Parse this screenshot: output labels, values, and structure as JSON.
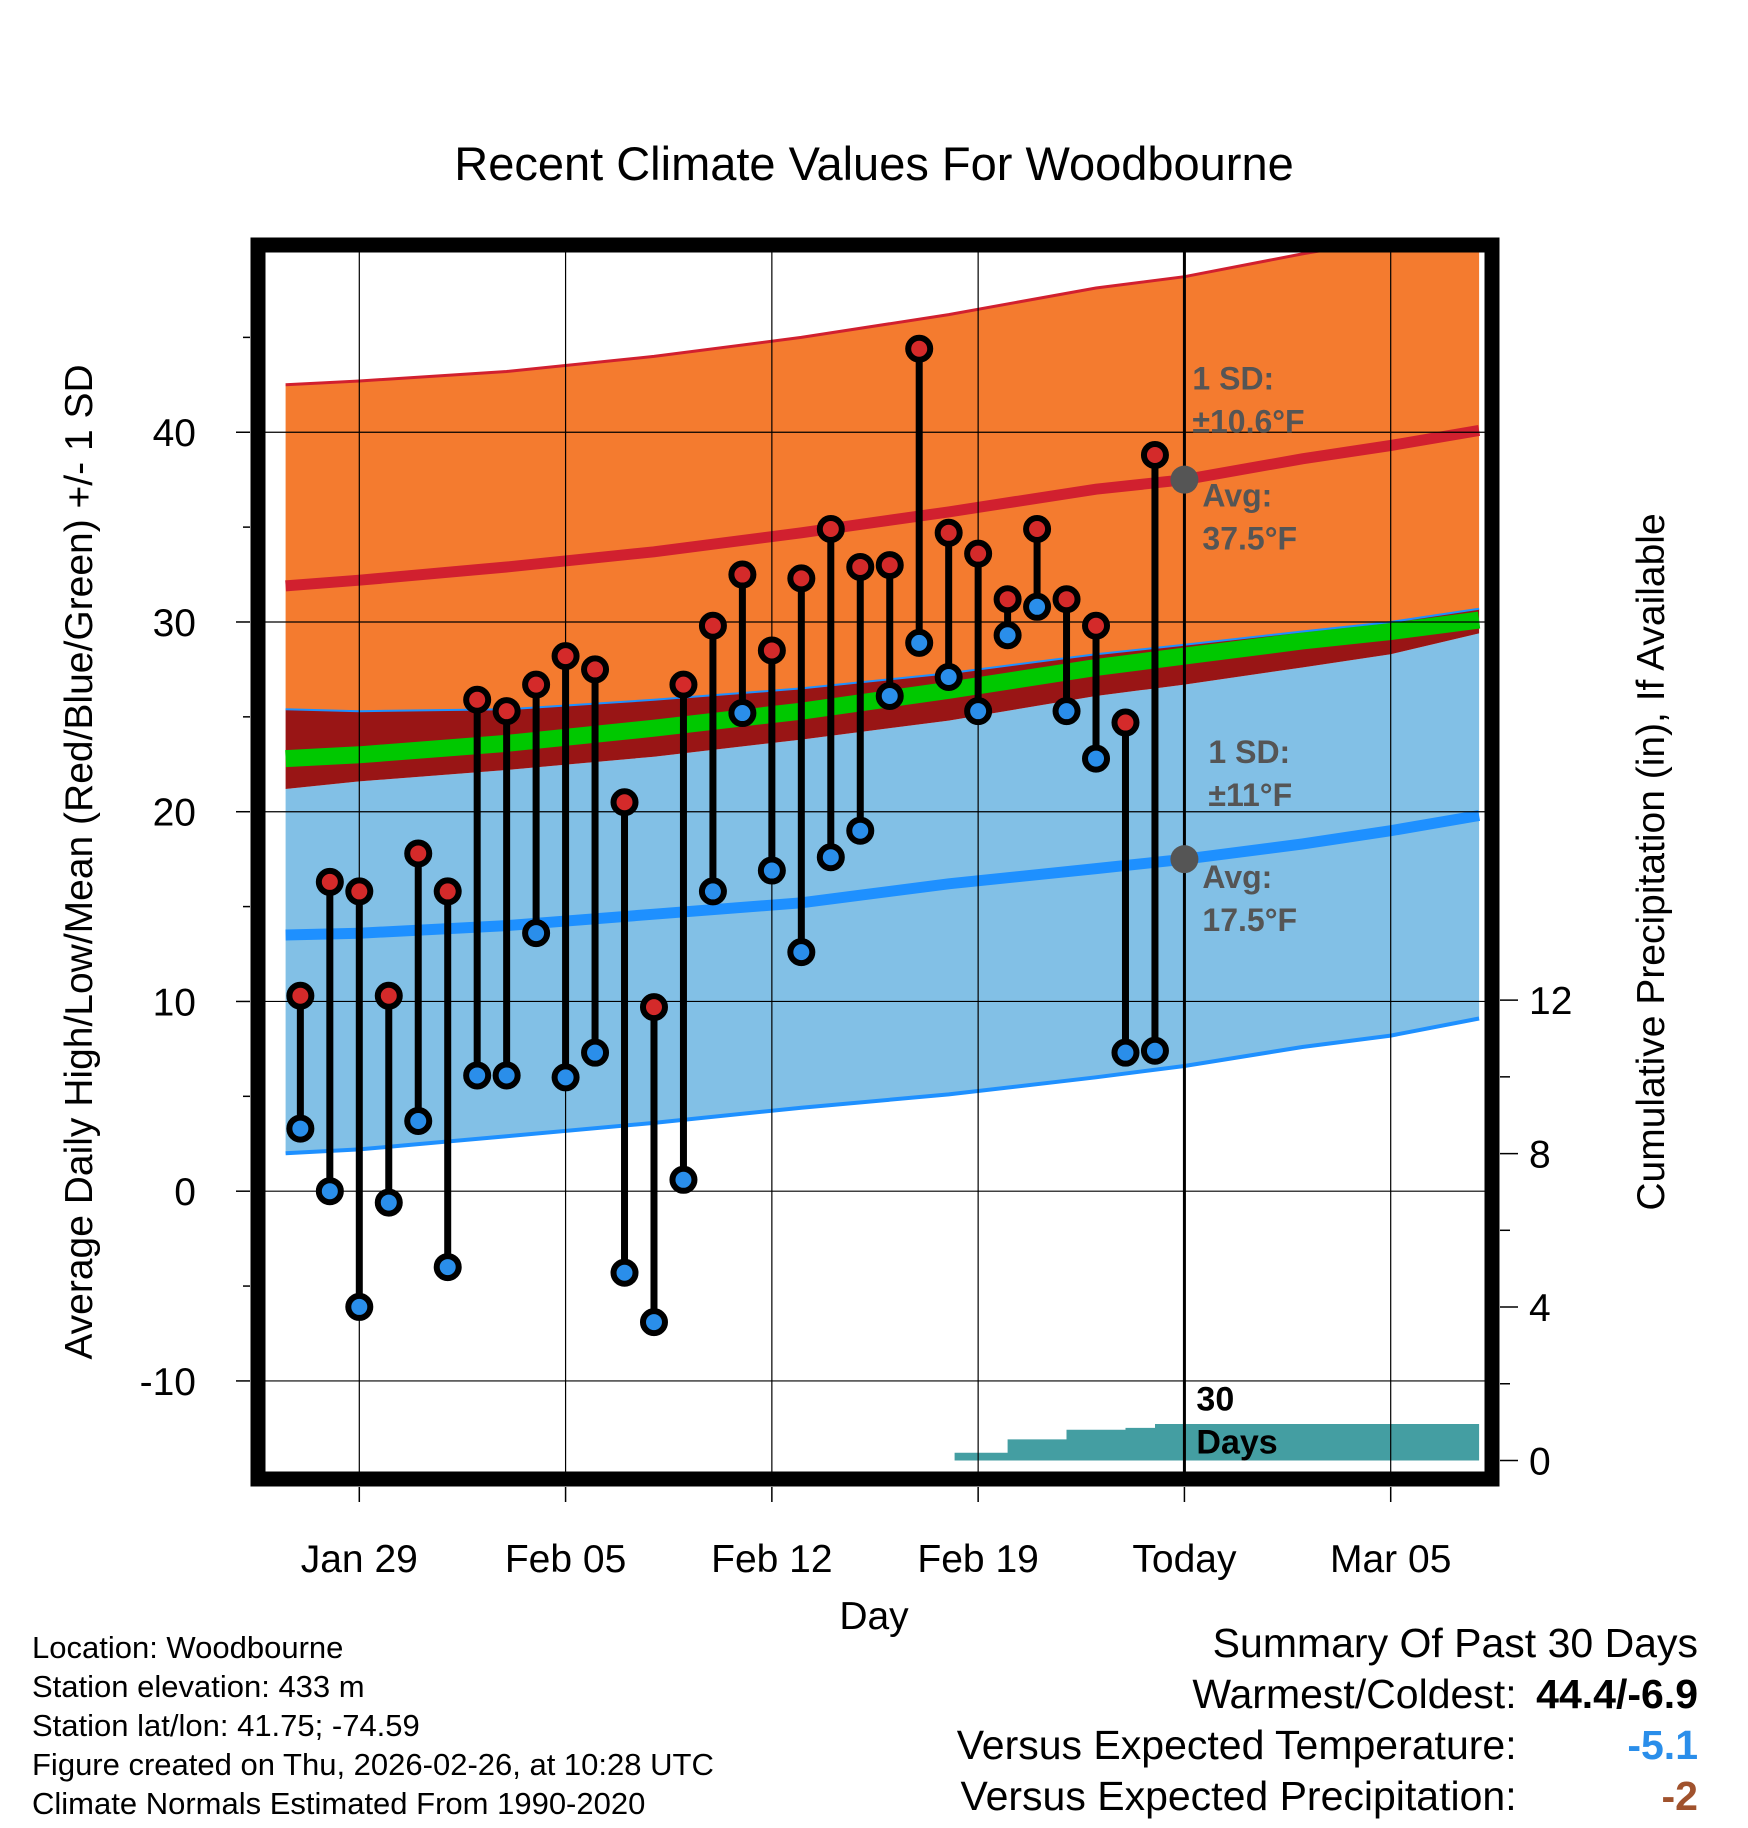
{
  "chart_data": {
    "type": "line",
    "title": "Recent Climate Values For Woodbourne",
    "xlabel": "Day",
    "ylabel": "Average Daily High/Low/Mean (Red/Blue/Green) +/- 1 SD",
    "y2label": "Cumulative Precipitation (in), If Available",
    "ylim": [
      -14.8,
      49.5
    ],
    "y2lim": [
      -0.3,
      31.5
    ],
    "xlim": [
      -3.2,
      38.2
    ],
    "yticks": [
      "-10",
      "0",
      "10",
      "20",
      "30",
      "40"
    ],
    "y2ticks": [
      "0",
      "4",
      "8",
      "12"
    ],
    "x_tick_labels": [
      {
        "day": 0,
        "label": "Jan 29"
      },
      {
        "day": 7,
        "label": "Feb 05"
      },
      {
        "day": 14,
        "label": "Feb 12"
      },
      {
        "day": 21,
        "label": "Feb 19"
      },
      {
        "day": 28,
        "label": "Today"
      },
      {
        "day": 35,
        "label": "Mar 05"
      }
    ],
    "today_day": 28,
    "normals": {
      "days": [
        -2.5,
        0,
        5,
        10,
        15,
        20,
        25,
        28,
        32,
        35,
        38
      ],
      "high_avg": [
        31.9,
        32.2,
        32.9,
        33.7,
        34.7,
        35.8,
        37.0,
        37.5,
        38.6,
        39.3,
        40.1
      ],
      "high_upper": [
        42.5,
        42.7,
        43.2,
        44.0,
        45.0,
        46.2,
        47.6,
        48.2,
        49.4,
        50.2,
        51.0
      ],
      "high_lower": [
        25.4,
        25.3,
        25.4,
        25.9,
        26.5,
        27.3,
        28.3,
        28.8,
        29.5,
        30.0,
        30.7
      ],
      "mean_avg": [
        22.8,
        23.0,
        23.6,
        24.4,
        25.3,
        26.4,
        27.6,
        28.2,
        29.0,
        29.5,
        30.1
      ],
      "low_avg": [
        13.5,
        13.6,
        14.0,
        14.6,
        15.2,
        16.2,
        17.0,
        17.5,
        18.3,
        19.0,
        19.8
      ],
      "low_upper": [
        21.2,
        21.6,
        22.2,
        22.9,
        23.8,
        24.8,
        26.1,
        26.7,
        27.6,
        28.3,
        29.4
      ],
      "low_lower": [
        2.0,
        2.2,
        2.9,
        3.6,
        4.4,
        5.1,
        6.0,
        6.6,
        7.6,
        8.2,
        9.1
      ]
    },
    "annotations": [
      {
        "day": 28,
        "value": 37.5,
        "sd_label": "1 SD:",
        "sd_value": "±10.6°F",
        "avg_label": "Avg:",
        "avg_value": "37.5°F"
      },
      {
        "day": 28,
        "value": 17.5,
        "sd_label": "1 SD:",
        "sd_value": "±11°F",
        "avg_label": "Avg:",
        "avg_value": "17.5°F"
      }
    ],
    "precip_label": [
      "30",
      "Days"
    ],
    "series": [
      {
        "name": "High",
        "days": [
          -2,
          -1,
          0,
          1,
          2,
          3,
          4,
          5,
          6,
          7,
          8,
          9,
          10,
          11,
          12,
          13,
          14,
          15,
          16,
          17,
          18,
          19,
          20,
          21,
          22,
          23,
          24,
          25,
          26,
          27
        ],
        "values": [
          10.3,
          16.3,
          15.8,
          10.3,
          17.8,
          15.8,
          25.9,
          25.3,
          26.7,
          28.2,
          27.5,
          20.5,
          9.7,
          26.7,
          29.8,
          32.5,
          28.5,
          32.3,
          34.9,
          32.9,
          33.0,
          44.4,
          34.7,
          33.6,
          31.2,
          34.9,
          31.2,
          29.8,
          24.7,
          38.8
        ]
      },
      {
        "name": "Low",
        "days": [
          -2,
          -1,
          0,
          1,
          2,
          3,
          4,
          5,
          6,
          7,
          8,
          9,
          10,
          11,
          12,
          13,
          14,
          15,
          16,
          17,
          18,
          19,
          20,
          21,
          22,
          23,
          24,
          25,
          26,
          27
        ],
        "values": [
          3.3,
          0.0,
          -6.1,
          -0.6,
          3.7,
          -4.0,
          6.1,
          6.1,
          13.6,
          6.0,
          7.3,
          -4.3,
          -6.9,
          0.6,
          15.8,
          25.2,
          16.9,
          12.6,
          17.6,
          19.0,
          26.1,
          28.9,
          27.1,
          25.3,
          29.3,
          30.8,
          25.3,
          22.8,
          7.3,
          7.4
        ]
      },
      {
        "name": "Cumulative Precipitation",
        "days": [
          19.6,
          20.2,
          21.0,
          22.0,
          23.0,
          24.0,
          25.0,
          26.0,
          27.0,
          28.0,
          38.0
        ],
        "values": [
          0,
          0.2,
          0.2,
          0.55,
          0.55,
          0.8,
          0.8,
          0.85,
          0.95,
          0.95,
          0.95
        ]
      }
    ]
  },
  "footer": {
    "location": "Location: Woodbourne",
    "elevation": "Station elevation: 433 m",
    "latlon": "Station lat/lon: 41.75; -74.59",
    "created": "Figure created on Thu, 2026-02-26, at 10:28 UTC",
    "normals": "Climate Normals Estimated From 1990-2020"
  },
  "summary": {
    "title": "Summary Of Past 30 Days",
    "warmest_label": "Warmest/Coldest:",
    "warmest_value": "44.4/-6.9",
    "temp_label": "Versus Expected Temperature:",
    "temp_value": "-5.1",
    "precip_label": "Versus Expected Precipitation:",
    "precip_value": "-2"
  },
  "colors": {
    "high_band": "#f47b2f",
    "high_line": "#d1202f",
    "mean_line": "#00c800",
    "mean_overlap": "#991515",
    "low_band": "#82c0e6",
    "low_line": "#1e90ff",
    "precip": "#449ea2",
    "high_marker": "#d42a2a",
    "low_marker": "#2a8eea",
    "temp_value": "#2a8eea",
    "precip_value": "#a0522d"
  }
}
